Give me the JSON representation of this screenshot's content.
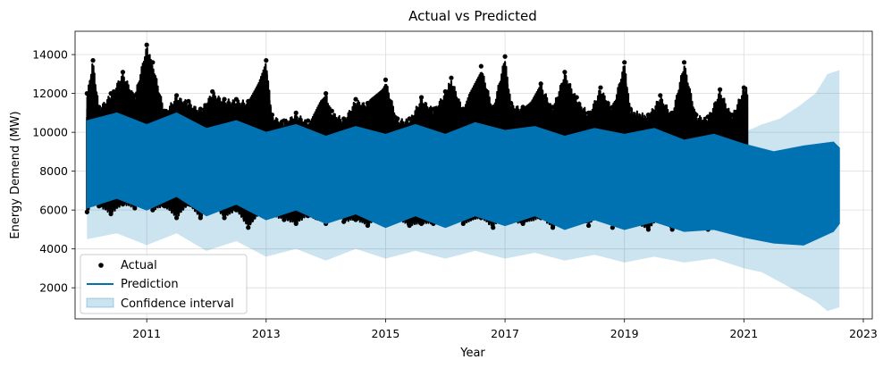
{
  "chart_data": {
    "type": "line",
    "title": "Actual vs Predicted",
    "xlabel": "Year",
    "ylabel": "Energy Demend (MW)",
    "xlim": [
      2009.8,
      2023.15
    ],
    "ylim": [
      400,
      15200
    ],
    "x_ticks": [
      2011,
      2013,
      2015,
      2017,
      2019,
      2021,
      2023
    ],
    "y_ticks": [
      2000,
      4000,
      6000,
      8000,
      10000,
      12000,
      14000
    ],
    "grid": true,
    "legend_position": "bottom-left",
    "legend": [
      "Actual",
      "Prediction",
      "Confidence interval"
    ],
    "actual_end": 2021.0,
    "forecast_end": 2022.6,
    "series": [
      {
        "name": "Actual",
        "style": "points",
        "color": "#000000",
        "x": [
          2010.0,
          2010.1,
          2010.2,
          2010.4,
          2010.6,
          2010.8,
          2011.0,
          2011.1,
          2011.3,
          2011.5,
          2011.7,
          2011.9,
          2012.1,
          2012.3,
          2012.5,
          2012.7,
          2013.0,
          2013.1,
          2013.3,
          2013.5,
          2013.7,
          2014.0,
          2014.1,
          2014.3,
          2014.5,
          2014.7,
          2015.0,
          2015.2,
          2015.4,
          2015.6,
          2015.8,
          2016.0,
          2016.1,
          2016.3,
          2016.6,
          2016.8,
          2017.0,
          2017.1,
          2017.3,
          2017.6,
          2017.8,
          2018.0,
          2018.2,
          2018.4,
          2018.6,
          2018.8,
          2019.0,
          2019.1,
          2019.4,
          2019.6,
          2019.8,
          2020.0,
          2020.2,
          2020.4,
          2020.6,
          2020.8,
          2021.0
        ],
        "max": [
          12000,
          13700,
          11300,
          12000,
          13100,
          11900,
          14500,
          13600,
          11100,
          11900,
          11600,
          11200,
          12100,
          11700,
          11700,
          11600,
          13700,
          10900,
          10600,
          11000,
          10600,
          12000,
          11100,
          10700,
          11700,
          11500,
          12700,
          10700,
          10700,
          11800,
          11200,
          12100,
          12800,
          11200,
          13400,
          11300,
          13900,
          11500,
          11300,
          12500,
          11300,
          13100,
          11800,
          11000,
          12300,
          11300,
          13600,
          11200,
          10900,
          11900,
          11000,
          13600,
          10900,
          10800,
          12200,
          10900,
          12300
        ],
        "min": [
          5900,
          6300,
          6200,
          5800,
          6300,
          6100,
          6600,
          6000,
          6200,
          5600,
          6300,
          5600,
          6300,
          5600,
          6000,
          5100,
          6200,
          5700,
          5500,
          5300,
          5700,
          5300,
          6100,
          5400,
          5500,
          5200,
          5900,
          5500,
          5200,
          5300,
          5300,
          5300,
          6100,
          5300,
          5600,
          5100,
          5900,
          5400,
          5300,
          5600,
          5100,
          5500,
          5900,
          5200,
          5900,
          5100,
          5600,
          5400,
          5000,
          5700,
          5000,
          5300,
          5900,
          5000,
          5300,
          5100,
          5300
        ]
      },
      {
        "name": "Prediction",
        "style": "band",
        "color": "#0072B2",
        "x": [
          2010.0,
          2010.5,
          2011.0,
          2011.5,
          2012.0,
          2012.5,
          2013.0,
          2013.5,
          2014.0,
          2014.5,
          2015.0,
          2015.5,
          2016.0,
          2016.5,
          2017.0,
          2017.5,
          2018.0,
          2018.5,
          2019.0,
          2019.5,
          2020.0,
          2020.5,
          2021.0,
          2021.5,
          2022.0,
          2022.5,
          2022.6
        ],
        "max": [
          10600,
          11000,
          10400,
          11000,
          10200,
          10600,
          10000,
          10400,
          9800,
          10300,
          9900,
          10400,
          9900,
          10500,
          10100,
          10300,
          9800,
          10200,
          9900,
          10200,
          9600,
          9900,
          9400,
          9000,
          9300,
          9500,
          9200
        ],
        "min": [
          6100,
          6600,
          6000,
          6700,
          5700,
          6300,
          5500,
          6000,
          5300,
          5800,
          5100,
          5700,
          5100,
          5700,
          5200,
          5700,
          5000,
          5500,
          5000,
          5400,
          4900,
          5000,
          4600,
          4300,
          4200,
          4900,
          5300
        ]
      },
      {
        "name": "Confidence interval",
        "style": "band",
        "color": "#0072B2",
        "opacity": 0.2,
        "x": [
          2010.0,
          2010.5,
          2011.0,
          2011.5,
          2012.0,
          2012.5,
          2013.0,
          2013.5,
          2014.0,
          2014.5,
          2015.0,
          2015.5,
          2016.0,
          2016.5,
          2017.0,
          2017.5,
          2018.0,
          2018.5,
          2019.0,
          2019.5,
          2020.0,
          2020.5,
          2021.0,
          2021.3,
          2021.6,
          2021.9,
          2022.2,
          2022.4,
          2022.6
        ],
        "max": [
          10900,
          11300,
          10800,
          11300,
          10600,
          11000,
          10400,
          10700,
          10100,
          10700,
          10200,
          10700,
          10300,
          10800,
          10500,
          10700,
          10200,
          10500,
          10300,
          10600,
          10100,
          10400,
          10000,
          10400,
          10700,
          11300,
          12000,
          13000,
          13200
        ],
        "min": [
          4500,
          4800,
          4200,
          4800,
          3900,
          4400,
          3600,
          4000,
          3400,
          4000,
          3500,
          3900,
          3500,
          3900,
          3500,
          3800,
          3400,
          3700,
          3300,
          3600,
          3300,
          3500,
          3000,
          2800,
          2300,
          1800,
          1300,
          800,
          1000
        ]
      }
    ]
  }
}
